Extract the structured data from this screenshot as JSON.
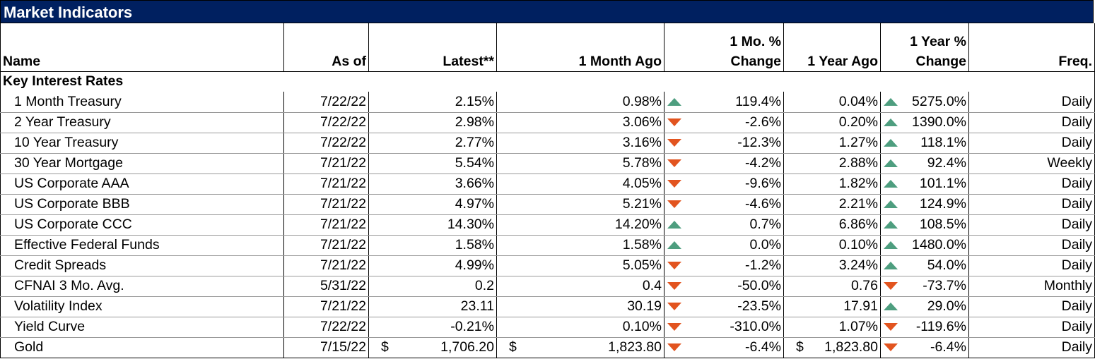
{
  "title": "Market Indicators",
  "columns": {
    "name": "Name",
    "as_of": "As of",
    "latest": "Latest**",
    "month_ago": "1 Month Ago",
    "mo_change_1": "1 Mo. %",
    "mo_change_2": "Change",
    "year_ago": "1 Year Ago",
    "yr_change_1": "1 Year %",
    "yr_change_2": "Change",
    "freq": "Freq."
  },
  "section_label": "Key Interest Rates",
  "rows": [
    {
      "name": "1 Month Treasury",
      "as_of": "7/22/22",
      "latest": "2.15%",
      "month_ago": "0.98%",
      "mo_dir": "up",
      "mo_change": "119.4%",
      "year_ago": "0.04%",
      "yr_dir": "up",
      "yr_change": "5275.0%",
      "freq": "Daily"
    },
    {
      "name": "2 Year Treasury",
      "as_of": "7/22/22",
      "latest": "2.98%",
      "month_ago": "3.06%",
      "mo_dir": "down",
      "mo_change": "-2.6%",
      "year_ago": "0.20%",
      "yr_dir": "up",
      "yr_change": "1390.0%",
      "freq": "Daily"
    },
    {
      "name": "10 Year Treasury",
      "as_of": "7/22/22",
      "latest": "2.77%",
      "month_ago": "3.16%",
      "mo_dir": "down",
      "mo_change": "-12.3%",
      "year_ago": "1.27%",
      "yr_dir": "up",
      "yr_change": "118.1%",
      "freq": "Daily"
    },
    {
      "name": "30 Year Mortgage",
      "as_of": "7/21/22",
      "latest": "5.54%",
      "month_ago": "5.78%",
      "mo_dir": "down",
      "mo_change": "-4.2%",
      "year_ago": "2.88%",
      "yr_dir": "up",
      "yr_change": "92.4%",
      "freq": "Weekly"
    },
    {
      "name": "US Corporate AAA",
      "as_of": "7/21/22",
      "latest": "3.66%",
      "month_ago": "4.05%",
      "mo_dir": "down",
      "mo_change": "-9.6%",
      "year_ago": "1.82%",
      "yr_dir": "up",
      "yr_change": "101.1%",
      "freq": "Daily"
    },
    {
      "name": "US Corporate BBB",
      "as_of": "7/21/22",
      "latest": "4.97%",
      "month_ago": "5.21%",
      "mo_dir": "down",
      "mo_change": "-4.6%",
      "year_ago": "2.21%",
      "yr_dir": "up",
      "yr_change": "124.9%",
      "freq": "Daily"
    },
    {
      "name": "US Corporate CCC",
      "as_of": "7/21/22",
      "latest": "14.30%",
      "month_ago": "14.20%",
      "mo_dir": "up",
      "mo_change": "0.7%",
      "year_ago": "6.86%",
      "yr_dir": "up",
      "yr_change": "108.5%",
      "freq": "Daily"
    },
    {
      "name": "Effective Federal Funds",
      "as_of": "7/21/22",
      "latest": "1.58%",
      "month_ago": "1.58%",
      "mo_dir": "up",
      "mo_change": "0.0%",
      "year_ago": "0.10%",
      "yr_dir": "up",
      "yr_change": "1480.0%",
      "freq": "Daily"
    },
    {
      "name": "Credit Spreads",
      "as_of": "7/21/22",
      "latest": "4.99%",
      "month_ago": "5.05%",
      "mo_dir": "down",
      "mo_change": "-1.2%",
      "year_ago": "3.24%",
      "yr_dir": "up",
      "yr_change": "54.0%",
      "freq": "Daily"
    },
    {
      "name": "CFNAI 3 Mo. Avg.",
      "as_of": "5/31/22",
      "latest": "0.2",
      "month_ago": "0.4",
      "mo_dir": "down",
      "mo_change": "-50.0%",
      "year_ago": "0.76",
      "yr_dir": "down",
      "yr_change": "-73.7%",
      "freq": "Monthly"
    },
    {
      "name": "Volatility Index",
      "as_of": "7/21/22",
      "latest": "23.11",
      "month_ago": "30.19",
      "mo_dir": "down",
      "mo_change": "-23.5%",
      "year_ago": "17.91",
      "yr_dir": "up",
      "yr_change": "29.0%",
      "freq": "Daily"
    },
    {
      "name": "Yield Curve",
      "as_of": "7/22/22",
      "latest": "-0.21%",
      "month_ago": "0.10%",
      "mo_dir": "down",
      "mo_change": "-310.0%",
      "year_ago": "1.07%",
      "yr_dir": "down",
      "yr_change": "-119.6%",
      "freq": "Daily"
    },
    {
      "name": "Gold",
      "as_of": "7/15/22",
      "latest_currency": "$",
      "latest": "1,706.20",
      "month_ago_currency": "$",
      "month_ago": "1,823.80",
      "mo_dir": "down",
      "mo_change": "-6.4%",
      "year_ago_currency": "$",
      "year_ago": "1,823.80",
      "yr_dir": "down",
      "yr_change": "-6.4%",
      "freq": "Daily"
    }
  ],
  "colors": {
    "header_bg": "#002060",
    "up_arrow": "#4e9e7f",
    "down_arrow": "#e2541f"
  },
  "icons": {
    "up": "triangle-up-icon",
    "down": "triangle-down-icon"
  }
}
